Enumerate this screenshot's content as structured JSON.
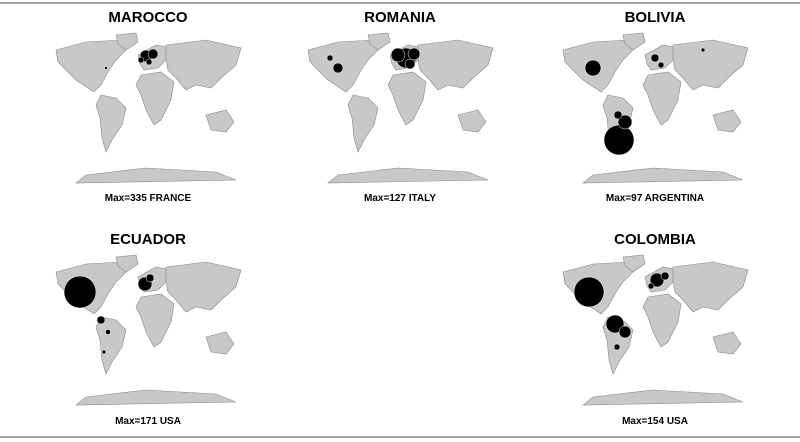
{
  "panels": [
    {
      "title": "MAROCCO",
      "caption": "Max=335 FRANCE"
    },
    {
      "title": "ROMANIA",
      "caption": "Max=127 ITALY"
    },
    {
      "title": "BOLIVIA",
      "caption": "Max=97 ARGENTINA"
    },
    {
      "title": "ECUADOR",
      "caption": "Max=171 USA"
    },
    {
      "title": "COLOMBIA",
      "caption": "Max=154 USA"
    }
  ]
}
